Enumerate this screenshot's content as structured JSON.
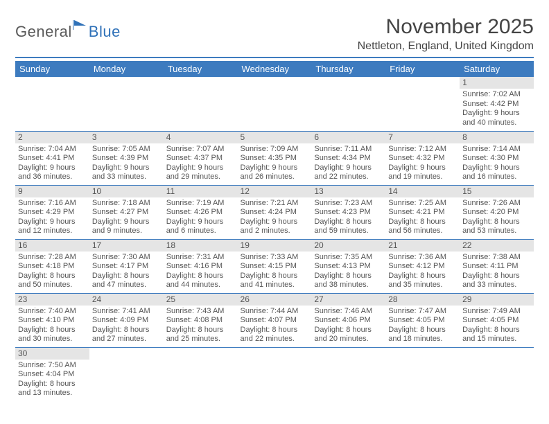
{
  "logo": {
    "part1": "General",
    "part2": "Blue"
  },
  "title": "November 2025",
  "location": "Nettleton, England, United Kingdom",
  "colors": {
    "accent": "#3d7bbf",
    "daybar": "#e5e5e5",
    "text": "#555555",
    "logo_gray": "#5a5a5a",
    "logo_blue": "#2f71b8"
  },
  "weekdays": [
    "Sunday",
    "Monday",
    "Tuesday",
    "Wednesday",
    "Thursday",
    "Friday",
    "Saturday"
  ],
  "startOffset": 6,
  "days": [
    {
      "n": 1,
      "sunrise": "7:02 AM",
      "sunset": "4:42 PM",
      "daylight": "9 hours and 40 minutes."
    },
    {
      "n": 2,
      "sunrise": "7:04 AM",
      "sunset": "4:41 PM",
      "daylight": "9 hours and 36 minutes."
    },
    {
      "n": 3,
      "sunrise": "7:05 AM",
      "sunset": "4:39 PM",
      "daylight": "9 hours and 33 minutes."
    },
    {
      "n": 4,
      "sunrise": "7:07 AM",
      "sunset": "4:37 PM",
      "daylight": "9 hours and 29 minutes."
    },
    {
      "n": 5,
      "sunrise": "7:09 AM",
      "sunset": "4:35 PM",
      "daylight": "9 hours and 26 minutes."
    },
    {
      "n": 6,
      "sunrise": "7:11 AM",
      "sunset": "4:34 PM",
      "daylight": "9 hours and 22 minutes."
    },
    {
      "n": 7,
      "sunrise": "7:12 AM",
      "sunset": "4:32 PM",
      "daylight": "9 hours and 19 minutes."
    },
    {
      "n": 8,
      "sunrise": "7:14 AM",
      "sunset": "4:30 PM",
      "daylight": "9 hours and 16 minutes."
    },
    {
      "n": 9,
      "sunrise": "7:16 AM",
      "sunset": "4:29 PM",
      "daylight": "9 hours and 12 minutes."
    },
    {
      "n": 10,
      "sunrise": "7:18 AM",
      "sunset": "4:27 PM",
      "daylight": "9 hours and 9 minutes."
    },
    {
      "n": 11,
      "sunrise": "7:19 AM",
      "sunset": "4:26 PM",
      "daylight": "9 hours and 6 minutes."
    },
    {
      "n": 12,
      "sunrise": "7:21 AM",
      "sunset": "4:24 PM",
      "daylight": "9 hours and 2 minutes."
    },
    {
      "n": 13,
      "sunrise": "7:23 AM",
      "sunset": "4:23 PM",
      "daylight": "8 hours and 59 minutes."
    },
    {
      "n": 14,
      "sunrise": "7:25 AM",
      "sunset": "4:21 PM",
      "daylight": "8 hours and 56 minutes."
    },
    {
      "n": 15,
      "sunrise": "7:26 AM",
      "sunset": "4:20 PM",
      "daylight": "8 hours and 53 minutes."
    },
    {
      "n": 16,
      "sunrise": "7:28 AM",
      "sunset": "4:18 PM",
      "daylight": "8 hours and 50 minutes."
    },
    {
      "n": 17,
      "sunrise": "7:30 AM",
      "sunset": "4:17 PM",
      "daylight": "8 hours and 47 minutes."
    },
    {
      "n": 18,
      "sunrise": "7:31 AM",
      "sunset": "4:16 PM",
      "daylight": "8 hours and 44 minutes."
    },
    {
      "n": 19,
      "sunrise": "7:33 AM",
      "sunset": "4:15 PM",
      "daylight": "8 hours and 41 minutes."
    },
    {
      "n": 20,
      "sunrise": "7:35 AM",
      "sunset": "4:13 PM",
      "daylight": "8 hours and 38 minutes."
    },
    {
      "n": 21,
      "sunrise": "7:36 AM",
      "sunset": "4:12 PM",
      "daylight": "8 hours and 35 minutes."
    },
    {
      "n": 22,
      "sunrise": "7:38 AM",
      "sunset": "4:11 PM",
      "daylight": "8 hours and 33 minutes."
    },
    {
      "n": 23,
      "sunrise": "7:40 AM",
      "sunset": "4:10 PM",
      "daylight": "8 hours and 30 minutes."
    },
    {
      "n": 24,
      "sunrise": "7:41 AM",
      "sunset": "4:09 PM",
      "daylight": "8 hours and 27 minutes."
    },
    {
      "n": 25,
      "sunrise": "7:43 AM",
      "sunset": "4:08 PM",
      "daylight": "8 hours and 25 minutes."
    },
    {
      "n": 26,
      "sunrise": "7:44 AM",
      "sunset": "4:07 PM",
      "daylight": "8 hours and 22 minutes."
    },
    {
      "n": 27,
      "sunrise": "7:46 AM",
      "sunset": "4:06 PM",
      "daylight": "8 hours and 20 minutes."
    },
    {
      "n": 28,
      "sunrise": "7:47 AM",
      "sunset": "4:05 PM",
      "daylight": "8 hours and 18 minutes."
    },
    {
      "n": 29,
      "sunrise": "7:49 AM",
      "sunset": "4:05 PM",
      "daylight": "8 hours and 15 minutes."
    },
    {
      "n": 30,
      "sunrise": "7:50 AM",
      "sunset": "4:04 PM",
      "daylight": "8 hours and 13 minutes."
    }
  ],
  "labels": {
    "sunrise": "Sunrise:",
    "sunset": "Sunset:",
    "daylight": "Daylight:"
  }
}
